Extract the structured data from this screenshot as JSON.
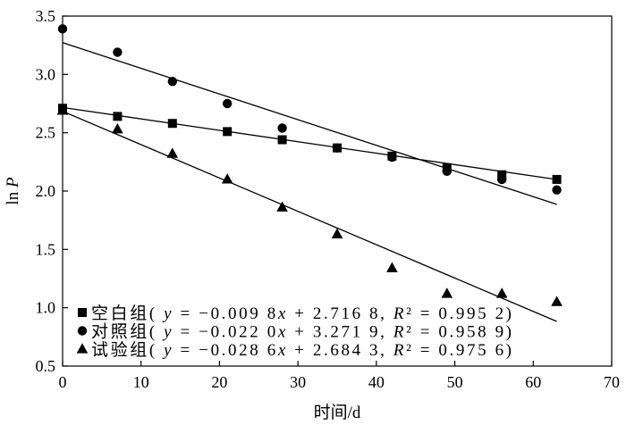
{
  "chart_data": {
    "type": "scatter",
    "xlabel": "时间/d",
    "ylabel": "ln P",
    "xlim": [
      0,
      70
    ],
    "ylim": [
      0.5,
      3.5
    ],
    "x_ticks": [
      "0",
      "10",
      "20",
      "30",
      "40",
      "50",
      "60",
      "70"
    ],
    "y_ticks": [
      "0.5",
      "1.0",
      "1.5",
      "2.0",
      "2.5",
      "3.0",
      "3.5"
    ],
    "grid": false,
    "legend_position": "bottom-left",
    "color": "#000000",
    "x": [
      0,
      7,
      14,
      21,
      28,
      35,
      42,
      49,
      56,
      63
    ],
    "series": [
      {
        "name": "空白组",
        "marker": "square",
        "values": [
          2.71,
          2.64,
          2.58,
          2.51,
          2.44,
          2.37,
          2.3,
          2.2,
          2.14,
          2.1
        ],
        "fit": {
          "slope": -0.0098,
          "intercept": 2.7168
        },
        "equation": "( y = −0.009 8x + 2.716 8, R² = 0.995 2)"
      },
      {
        "name": "对照组",
        "marker": "circle",
        "values": [
          3.39,
          3.19,
          2.94,
          2.75,
          2.54,
          2.37,
          2.29,
          2.17,
          2.1,
          2.01
        ],
        "fit": {
          "slope": -0.022,
          "intercept": 3.2719
        },
        "equation": "( y = −0.022 0x + 3.271 9, R² = 0.958 9)"
      },
      {
        "name": "试验组",
        "marker": "triangle",
        "values": [
          2.69,
          2.53,
          2.32,
          2.1,
          1.86,
          1.63,
          1.34,
          1.12,
          1.12,
          1.05
        ],
        "fit": {
          "slope": -0.0286,
          "intercept": 2.6843
        },
        "equation": "( y = −0.028 6x + 2.684 3, R² = 0.975 6)"
      }
    ]
  }
}
